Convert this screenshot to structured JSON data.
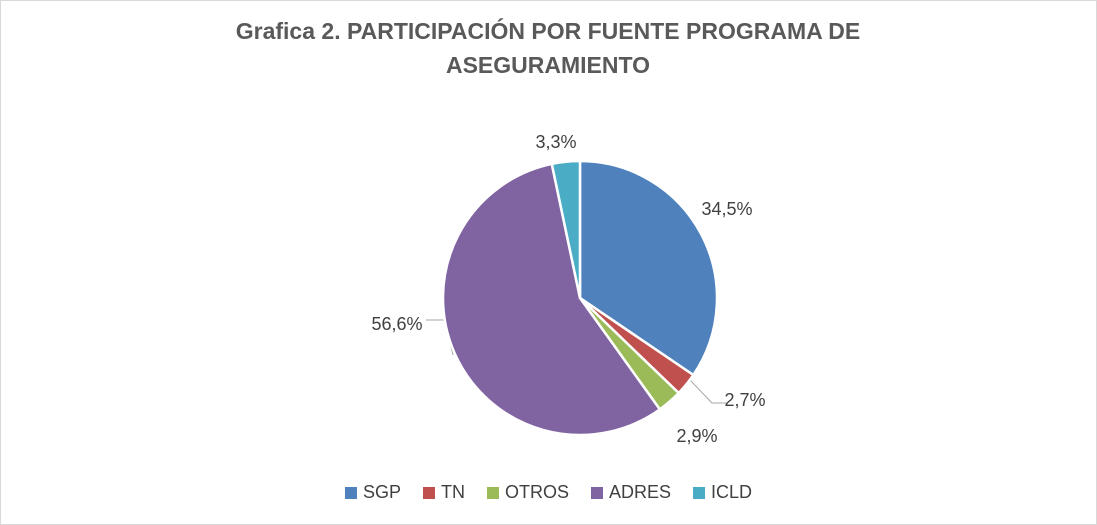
{
  "chart_data": {
    "type": "pie",
    "title": "Grafica 2. PARTICIPACIÓN POR FUENTE PROGRAMA DE ASEGURAMIENTO",
    "categories": [
      "SGP",
      "TN",
      "OTROS",
      "ADRES",
      "ICLD"
    ],
    "values": [
      34.5,
      2.7,
      2.9,
      56.6,
      3.3
    ],
    "value_labels": [
      "34,5%",
      "2,7%",
      "2,9%",
      "56,6%",
      "3,3%"
    ],
    "colors": [
      "#4f81bd",
      "#c0504d",
      "#9bbb59",
      "#8064a2",
      "#4bacc6"
    ],
    "legend": "bottom"
  }
}
